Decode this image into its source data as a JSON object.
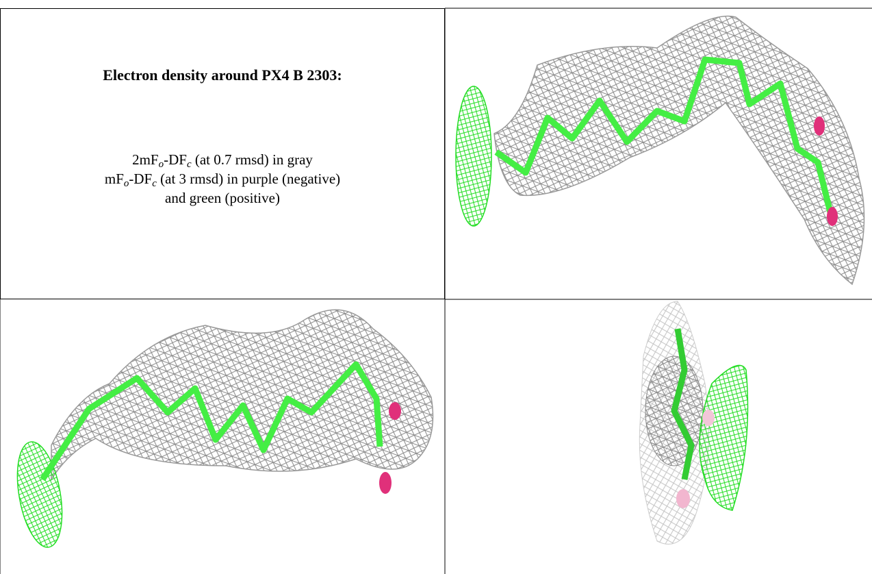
{
  "title": "Electron density around PX4 B 2303:",
  "caption": [
    [
      "2mF",
      "o",
      "-DF",
      "c",
      " (at 0.7 rmsd) in gray"
    ],
    [
      "mF",
      "o",
      "-DF",
      "c",
      " (at 3 rmsd) in purple (negative)"
    ],
    [
      "and green (positive)"
    ]
  ]
}
